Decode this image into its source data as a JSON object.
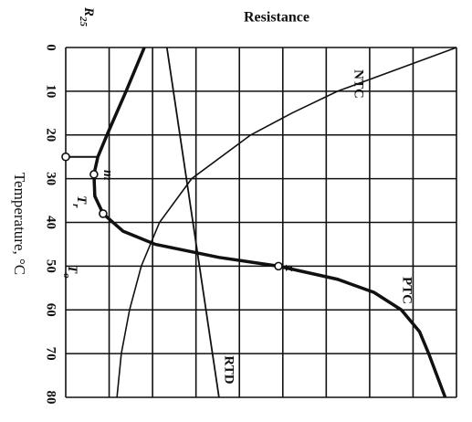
{
  "chart_data": {
    "type": "line",
    "title": "Resistance",
    "x_label": "Temperature, °C",
    "xlim": [
      0,
      80
    ],
    "xticks": [
      0,
      10,
      20,
      30,
      40,
      50,
      60,
      70,
      80
    ],
    "ylim": [
      0,
      9
    ],
    "yticks": [
      0,
      1,
      2,
      3,
      4,
      5,
      6,
      7,
      8,
      9
    ],
    "grid": true,
    "color": "#111111",
    "series": [
      {
        "name": "PTC",
        "x": [
          0,
          10,
          20,
          25,
          29,
          34,
          38,
          42,
          45,
          48,
          50,
          53,
          56,
          60,
          65,
          70,
          80
        ],
        "values": [
          1.81,
          1.39,
          0.95,
          0.74,
          0.65,
          0.67,
          0.86,
          1.32,
          2.06,
          3.53,
          4.9,
          6.26,
          7.1,
          7.73,
          8.15,
          8.36,
          8.74
        ]
      },
      {
        "name": "NTC",
        "x": [
          0,
          10,
          15,
          20,
          30,
          40,
          50,
          60,
          70,
          80
        ],
        "values": [
          9.0,
          6.26,
          5.21,
          4.26,
          2.9,
          2.16,
          1.74,
          1.47,
          1.28,
          1.18
        ]
      },
      {
        "name": "RTD",
        "x": [
          0,
          80
        ],
        "values": [
          2.33,
          3.53
        ]
      }
    ],
    "points": [
      {
        "label": "R",
        "sub": "25",
        "x": 25,
        "value": 0
      },
      {
        "label": "m",
        "x": 29,
        "value": 0.65
      },
      {
        "label": "T",
        "sub": "r",
        "x": 38,
        "value": 0.86
      },
      {
        "label": "x",
        "x": 50,
        "value": 4.9
      }
    ],
    "annotations": [
      {
        "label": "T",
        "sub": "o"
      }
    ]
  }
}
